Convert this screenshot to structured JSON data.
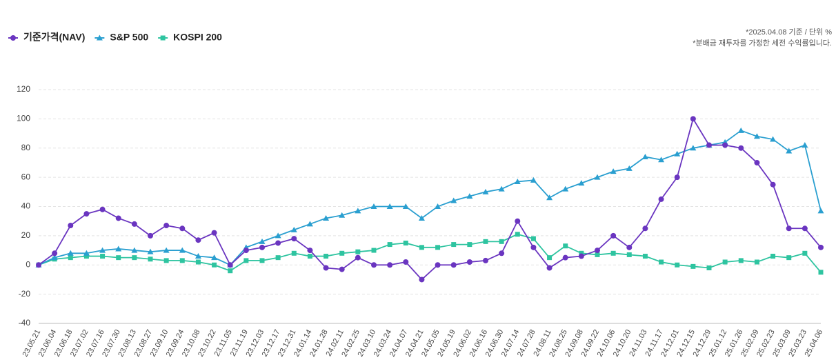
{
  "chart_data": {
    "type": "line",
    "notes": [
      "*2025.04.08 기준 / 단위 %",
      "*분배금 재투자를 가정한 세전 수익률입니다."
    ],
    "categories": [
      "23.05.21",
      "23.06.04",
      "23.06.18",
      "23.07.02",
      "23.07.16",
      "23.07.30",
      "23.08.13",
      "23.08.27",
      "23.09.10",
      "23.09.24",
      "23.10.08",
      "23.10.22",
      "23.11.05",
      "23.11.19",
      "23.12.03",
      "23.12.17",
      "23.12.31",
      "24.01.14",
      "24.01.28",
      "24.02.11",
      "24.02.25",
      "24.03.10",
      "24.03.24",
      "24.04.07",
      "24.04.21",
      "24.05.05",
      "24.05.19",
      "24.06.02",
      "24.06.16",
      "24.06.30",
      "24.07.14",
      "24.07.28",
      "24.08.11",
      "24.08.25",
      "24.09.08",
      "24.09.22",
      "24.10.06",
      "24.10.20",
      "24.11.03",
      "24.11.17",
      "24.12.01",
      "24.12.15",
      "24.12.29",
      "25.01.12",
      "25.01.26",
      "25.02.09",
      "25.02.23",
      "25.03.09",
      "25.03.23",
      "25.04.06"
    ],
    "series": [
      {
        "name": "기준가격(NAV)",
        "color": "#6a35c0",
        "marker": "circle",
        "values": [
          0,
          8,
          27,
          35,
          38,
          32,
          28,
          20,
          27,
          25,
          17,
          22,
          0,
          10,
          12,
          15,
          18,
          10,
          -2,
          -3,
          5,
          0,
          0,
          2,
          -10,
          0,
          0,
          2,
          3,
          8,
          30,
          12,
          -2,
          5,
          6,
          10,
          20,
          12,
          25,
          45,
          60,
          100,
          82,
          82,
          80,
          70,
          55,
          25,
          25,
          12
        ]
      },
      {
        "name": "S&P 500",
        "color": "#2a9fd0",
        "marker": "triangle",
        "values": [
          0,
          5,
          8,
          8,
          10,
          11,
          10,
          9,
          10,
          10,
          6,
          5,
          0,
          12,
          16,
          20,
          24,
          28,
          32,
          34,
          37,
          40,
          40,
          40,
          32,
          40,
          44,
          47,
          50,
          52,
          57,
          58,
          46,
          52,
          56,
          60,
          64,
          66,
          74,
          72,
          76,
          80,
          82,
          84,
          92,
          88,
          86,
          78,
          82,
          37
        ]
      },
      {
        "name": "KOSPI 200",
        "color": "#2ec4a0",
        "marker": "square",
        "values": [
          0,
          4,
          5,
          6,
          6,
          5,
          5,
          4,
          3,
          3,
          2,
          0,
          -4,
          3,
          3,
          5,
          8,
          6,
          6,
          8,
          9,
          10,
          14,
          15,
          12,
          12,
          14,
          14,
          16,
          16,
          21,
          18,
          5,
          13,
          8,
          7,
          8,
          7,
          6,
          2,
          0,
          -1,
          -2,
          2,
          3,
          2,
          6,
          5,
          8,
          -5
        ]
      }
    ],
    "ylim": [
      -40,
      120
    ],
    "yticks": [
      -40,
      -20,
      0,
      20,
      40,
      60,
      80,
      100,
      120
    ],
    "grid": true
  }
}
